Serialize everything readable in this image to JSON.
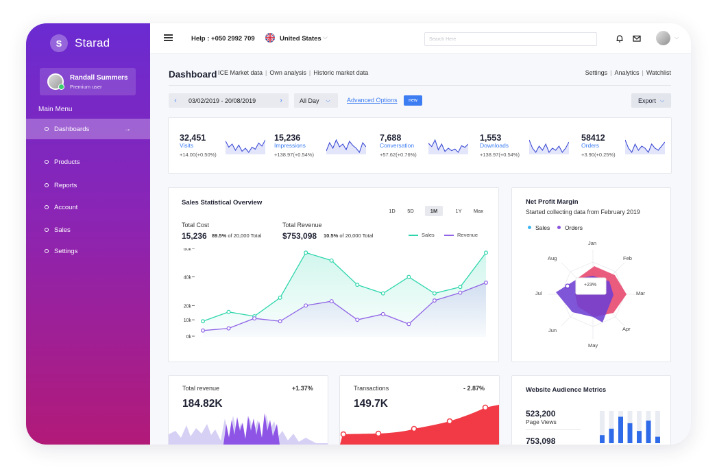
{
  "brand": {
    "logo_letter": "S",
    "name": "Starad"
  },
  "user": {
    "name": "Randall Summers",
    "role": "Premium user"
  },
  "sidebar": {
    "menu_title": "Main Menu",
    "items": [
      {
        "label": "Dashboards",
        "active": true
      },
      {
        "label": "Products"
      },
      {
        "label": "Reports"
      },
      {
        "label": "Account"
      },
      {
        "label": "Sales"
      },
      {
        "label": "Settings"
      }
    ],
    "active_arrow": "→"
  },
  "topbar": {
    "help": "Help : +050 2992 709",
    "country": "United States",
    "search_placeholder": "Search Here",
    "icons": [
      "menu-icon",
      "bell-icon",
      "mail-icon",
      "avatar",
      "chevron-down-icon"
    ]
  },
  "header": {
    "title": "Dashboard",
    "links": [
      "ICE Market data",
      "Own analysis",
      "Historic market data"
    ],
    "right_links": [
      "Settings",
      "Analytics",
      "Watchlist"
    ]
  },
  "filters": {
    "date_range": "03/02/2019 - 20/08/2019",
    "period": "All Day",
    "advanced": "Advanced Options",
    "new_badge": "new",
    "export": "Export"
  },
  "kpis": [
    {
      "value": "32,451",
      "label": "Visits",
      "change": "+14.00(+0.50%)",
      "spark": [
        18,
        12,
        15,
        9,
        14,
        8,
        11,
        7,
        12,
        10,
        16,
        13,
        19
      ]
    },
    {
      "value": "15,236",
      "label": "Impressions",
      "change": "+138.97(+0.54%)",
      "spark": [
        10,
        16,
        12,
        18,
        13,
        15,
        11,
        17,
        14,
        12,
        9,
        16,
        13
      ]
    },
    {
      "value": "7,688",
      "label": "Conversation",
      "change": "+57.62(+0.76%)",
      "spark": [
        18,
        14,
        22,
        10,
        17,
        8,
        12,
        9,
        11,
        7,
        15,
        13,
        17
      ]
    },
    {
      "value": "1,553",
      "label": "Downloads",
      "change": "+138.97(+0.54%)",
      "spark": [
        17,
        13,
        11,
        14,
        12,
        15,
        11,
        13,
        12,
        14,
        11,
        13,
        16
      ]
    },
    {
      "value": "58412",
      "label": "Orders",
      "change": "+3.90(+0.25%)",
      "spark": [
        16,
        12,
        10,
        14,
        11,
        13,
        12,
        10,
        14,
        12,
        11,
        13,
        15
      ]
    }
  ],
  "sales_overview": {
    "title": "Sales Statistical Overview",
    "ranges": [
      "1D",
      "5D",
      "1M",
      "1Y",
      "Max"
    ],
    "active_range": "1M",
    "total_cost_label": "Total Cost",
    "total_cost": "15,236",
    "total_cost_pct": "89.5%",
    "total_cost_of": "of 20,000 Total",
    "total_revenue_label": "Total Revenue",
    "total_revenue": "$753,098",
    "total_revenue_pct": "10.5%",
    "total_revenue_of": "of 20,000 Total",
    "legend": [
      "Sales",
      "Revenue"
    ]
  },
  "chart_data": {
    "type": "line",
    "title": "Sales Statistical Overview",
    "ylim": [
      0,
      60000
    ],
    "yticks": [
      "60k",
      "40k",
      "20k",
      "10k",
      "0k"
    ],
    "x": [
      1,
      2,
      3,
      4,
      5,
      6,
      7,
      8,
      9,
      10,
      11,
      12
    ],
    "series": [
      {
        "name": "Sales",
        "color": "#2fd6ad",
        "values": [
          9000,
          15500,
          12500,
          25500,
          57000,
          51500,
          34500,
          28500,
          40000,
          28500,
          33000,
          57000
        ]
      },
      {
        "name": "Revenue",
        "color": "#8f63e6",
        "values": [
          2500,
          4000,
          11000,
          9000,
          20000,
          23000,
          10000,
          14000,
          7000,
          23500,
          29000,
          36000
        ]
      }
    ],
    "grid": false
  },
  "net_profit": {
    "title": "Net Profit Margin",
    "subtitle": "Started collecting data from February 2019",
    "legend": [
      {
        "label": "Sales",
        "color": "#3fb6f2"
      },
      {
        "label": "Orders",
        "color": "#8a52dd"
      }
    ],
    "axes": [
      "Jan",
      "Feb",
      "Mar",
      "Apr",
      "May",
      "Jun",
      "Jul",
      "Aug"
    ],
    "tooltip": "+23%"
  },
  "total_revenue": {
    "label": "Total revenue",
    "change": "+1.37%",
    "value": "184.82K"
  },
  "transactions": {
    "label": "Transactions",
    "change": "- 2.87%",
    "value": "149.7K"
  },
  "audience": {
    "title": "Website Audience Metrics",
    "page_views_value": "523,200",
    "page_views_label": "Page Views",
    "second_value": "753,098",
    "bars": [
      0.25,
      0.45,
      0.82,
      0.62,
      0.38,
      0.7,
      0.2
    ]
  },
  "colors": {
    "accent": "#3d7df2",
    "sidebar_top": "#6a2bd1",
    "sidebar_bottom": "#b21a78",
    "sales": "#2fd6ad",
    "revenue": "#8f63e6",
    "profit_pink": "#e84a6f",
    "transactions_red": "#f13a45"
  }
}
